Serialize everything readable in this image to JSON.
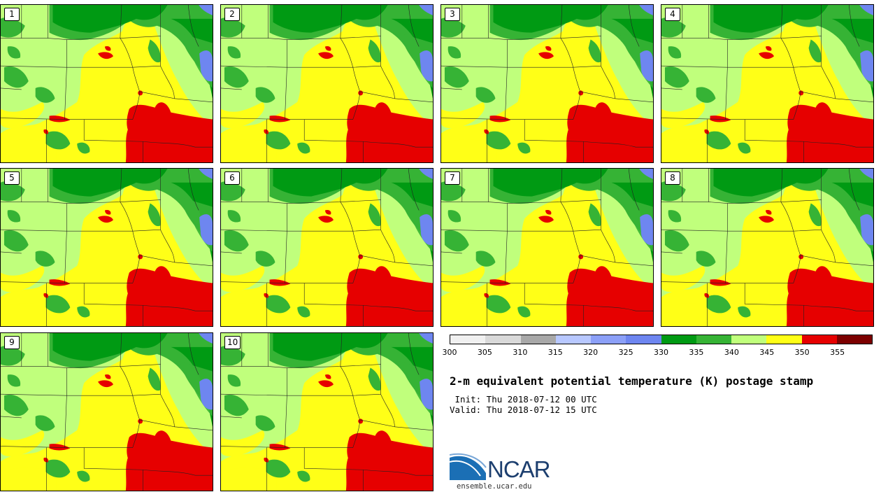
{
  "members": [
    "1",
    "2",
    "3",
    "4",
    "5",
    "6",
    "7",
    "8",
    "9",
    "10"
  ],
  "colorbar": {
    "ticks": [
      "300",
      "305",
      "310",
      "315",
      "320",
      "325",
      "330",
      "335",
      "340",
      "345",
      "350",
      "355"
    ],
    "colors": [
      "#f0f0f0",
      "#d9d9d9",
      "#a8a8a8",
      "#b8c8ff",
      "#8ca0f8",
      "#6e86f0",
      "#009a13",
      "#36b335",
      "#c0ff7c",
      "#ffff17",
      "#e60000",
      "#7c0000"
    ]
  },
  "map_colors": {
    "dark_green": "#009a13",
    "mid_green": "#36b335",
    "light_green": "#c0ff7c",
    "yellow": "#ffff17",
    "red": "#e60000",
    "lake_blue": "#6e86f0"
  },
  "title": "2-m equivalent potential temperature (K) postage stamp",
  "init_text": " Init: Thu 2018-07-12 00 UTC",
  "valid_text": "Valid: Thu 2018-07-12 15 UTC",
  "logo": {
    "text": "NCAR",
    "url": "ensemble.ucar.edu"
  }
}
